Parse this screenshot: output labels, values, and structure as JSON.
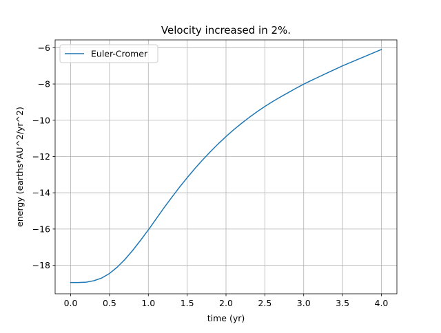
{
  "chart_data": {
    "type": "line",
    "title": "Velocity increased in 2%.",
    "xlabel": "time (yr)",
    "ylabel": "energy (earths*AU^2/yr^2)",
    "xlim": [
      -0.2,
      4.2
    ],
    "ylim": [
      -19.57,
      -5.57
    ],
    "xticks": [
      0.0,
      0.5,
      1.0,
      1.5,
      2.0,
      2.5,
      3.0,
      3.5,
      4.0
    ],
    "xtick_labels": [
      "0.0",
      "0.5",
      "1.0",
      "1.5",
      "2.0",
      "2.5",
      "3.0",
      "3.5",
      "4.0"
    ],
    "yticks": [
      -18,
      -16,
      -14,
      -12,
      -10,
      -8,
      -6
    ],
    "ytick_labels": [
      "−18",
      "−16",
      "−14",
      "−12",
      "−10",
      "−8",
      "−6"
    ],
    "grid": true,
    "legend_position": "top-left",
    "series": [
      {
        "name": "Euler-Cromer",
        "color": "#1f77b4",
        "x": [
          0.0,
          0.1,
          0.2,
          0.3,
          0.4,
          0.5,
          0.6,
          0.7,
          0.8,
          0.9,
          1.0,
          1.1,
          1.2,
          1.3,
          1.4,
          1.5,
          1.6,
          1.7,
          1.8,
          1.9,
          2.0,
          2.1,
          2.2,
          2.3,
          2.4,
          2.5,
          2.6,
          2.7,
          2.8,
          2.9,
          3.0,
          3.1,
          3.2,
          3.3,
          3.4,
          3.5,
          3.6,
          3.7,
          3.8,
          3.9,
          4.0
        ],
        "y": [
          -18.95,
          -18.95,
          -18.93,
          -18.85,
          -18.7,
          -18.45,
          -18.1,
          -17.67,
          -17.17,
          -16.62,
          -16.05,
          -15.44,
          -14.84,
          -14.26,
          -13.7,
          -13.17,
          -12.66,
          -12.18,
          -11.73,
          -11.3,
          -10.9,
          -10.52,
          -10.17,
          -9.84,
          -9.53,
          -9.24,
          -8.97,
          -8.72,
          -8.48,
          -8.24,
          -8.01,
          -7.8,
          -7.6,
          -7.4,
          -7.2,
          -7.0,
          -6.82,
          -6.64,
          -6.46,
          -6.28,
          -6.1
        ]
      }
    ]
  }
}
